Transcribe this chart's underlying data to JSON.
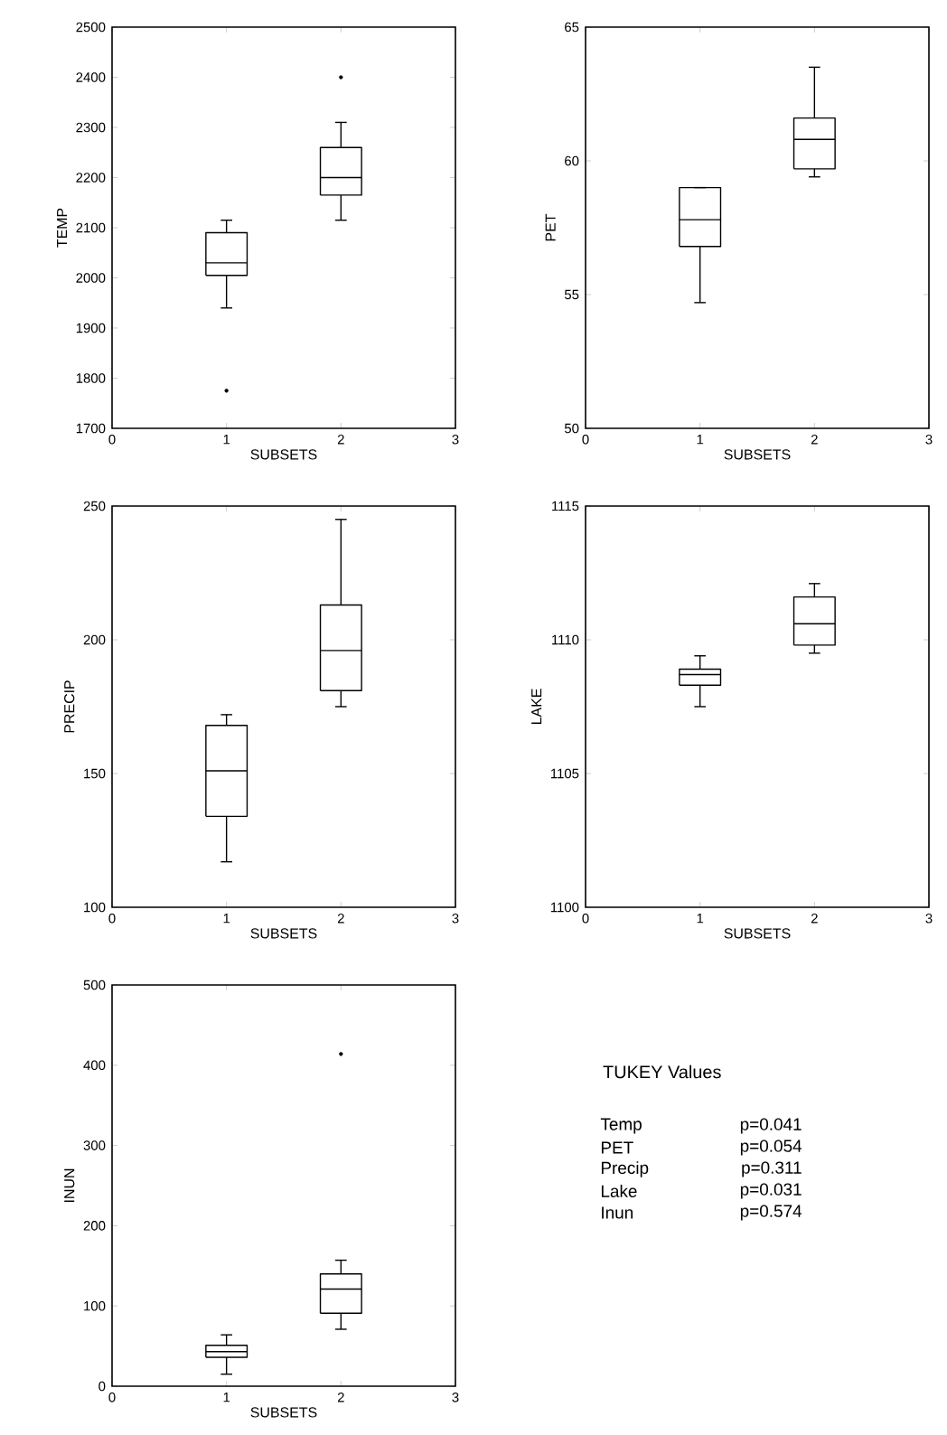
{
  "chart_data": [
    {
      "type": "box",
      "categories": [
        "0",
        "1",
        "2",
        "3"
      ],
      "ylim": [
        1700,
        2500
      ],
      "yticks": [
        1700,
        1800,
        1900,
        2000,
        2100,
        2200,
        2300,
        2400,
        2500
      ],
      "xlabel": "SUBSETS",
      "ylabel": "TEMP",
      "boxes": [
        null,
        {
          "low": 1940,
          "q1": 2005,
          "median": 2030,
          "q3": 2090,
          "high": 2115,
          "outliers": [
            1775
          ]
        },
        {
          "low": 2115,
          "q1": 2165,
          "median": 2200,
          "q3": 2260,
          "high": 2310,
          "outliers": [
            2400
          ]
        },
        null
      ]
    },
    {
      "type": "box",
      "categories": [
        "0",
        "1",
        "2",
        "3"
      ],
      "ylim": [
        50,
        65
      ],
      "yticks": [
        50,
        55,
        60,
        65
      ],
      "xlabel": "SUBSETS",
      "ylabel": "PET",
      "boxes": [
        null,
        {
          "low": 54.7,
          "q1": 56.8,
          "median": 57.8,
          "q3": 59.0,
          "high": 59.0
        },
        {
          "low": 59.4,
          "q1": 59.7,
          "median": 60.8,
          "q3": 61.6,
          "high": 63.5
        },
        null
      ]
    },
    {
      "type": "box",
      "categories": [
        "0",
        "1",
        "2",
        "3"
      ],
      "ylim": [
        100,
        250
      ],
      "yticks": [
        100,
        150,
        200,
        250
      ],
      "xlabel": "SUBSETS",
      "ylabel": "PRECIP",
      "boxes": [
        null,
        {
          "low": 117,
          "q1": 134,
          "median": 151,
          "q3": 168,
          "high": 172
        },
        {
          "low": 175,
          "q1": 181,
          "median": 196,
          "q3": 213,
          "high": 245
        },
        null
      ]
    },
    {
      "type": "box",
      "categories": [
        "0",
        "1",
        "2",
        "3"
      ],
      "ylim": [
        1100,
        1115
      ],
      "yticks": [
        1100,
        1105,
        1110,
        1115
      ],
      "xlabel": "SUBSETS",
      "ylabel": "LAKE",
      "boxes": [
        null,
        {
          "low": 1107.5,
          "q1": 1108.3,
          "median": 1108.7,
          "q3": 1108.9,
          "high": 1109.4
        },
        {
          "low": 1109.5,
          "q1": 1109.8,
          "median": 1110.6,
          "q3": 1111.6,
          "high": 1112.1
        },
        null
      ]
    },
    {
      "type": "box",
      "categories": [
        "0",
        "1",
        "2",
        "3"
      ],
      "ylim": [
        0,
        500
      ],
      "yticks": [
        0,
        100,
        200,
        300,
        400,
        500
      ],
      "xlabel": "SUBSETS",
      "ylabel": "INUN",
      "boxes": [
        null,
        {
          "low": 15,
          "q1": 36,
          "median": 43,
          "q3": 51,
          "high": 64
        },
        {
          "low": 71,
          "q1": 91,
          "median": 121,
          "q3": 140,
          "high": 157,
          "outliers": [
            414
          ]
        },
        null
      ]
    },
    {
      "type": "other",
      "title": "TUKEY Values",
      "annotations": [
        "Temp",
        "p=0.041",
        "PET",
        "p=0.054",
        "Precip",
        "p=0.311",
        "Lake",
        "p=0.031",
        "Inun",
        "p=0.574"
      ]
    }
  ]
}
